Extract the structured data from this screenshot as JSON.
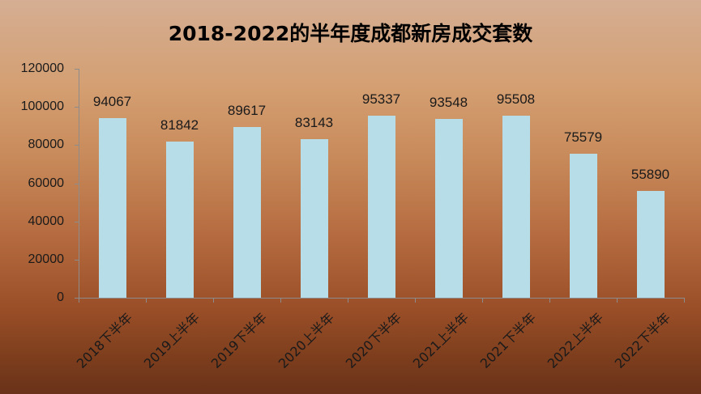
{
  "chart_data": {
    "type": "bar",
    "title": "2018-2022的半年度成都新房成交套数",
    "xlabel": "",
    "ylabel": "",
    "ylim": [
      0,
      120000
    ],
    "yticks": [
      0,
      20000,
      40000,
      60000,
      80000,
      100000,
      120000
    ],
    "categories": [
      "2018下半年",
      "2019上半年",
      "2019下半年",
      "2020上半年",
      "2020下半年",
      "2021上半年",
      "2021下半年",
      "2022上半年",
      "2022下半年"
    ],
    "values": [
      94067,
      81842,
      89617,
      83143,
      95337,
      93548,
      95508,
      75579,
      55890
    ],
    "data_labels": [
      "94067",
      "81842",
      "89617",
      "83143",
      "95337",
      "93548",
      "95508",
      "75579",
      "55890"
    ],
    "grid": false,
    "legend": null,
    "bar_color": "#b7dde8"
  }
}
